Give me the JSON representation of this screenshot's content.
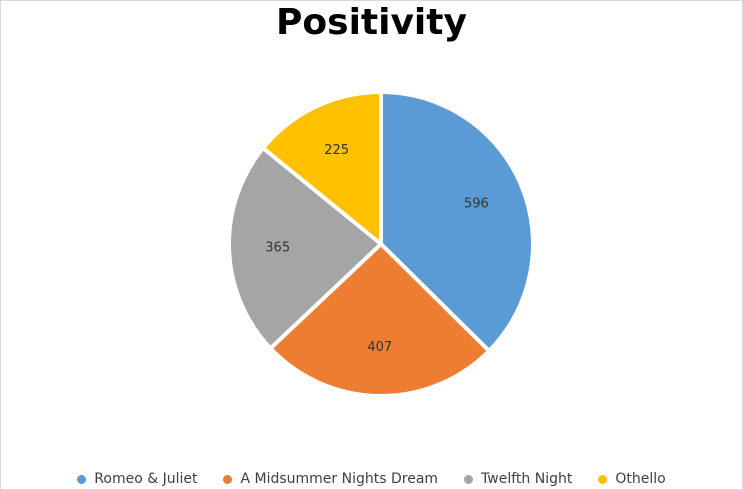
{
  "chart_data": {
    "type": "pie",
    "title": "Positivity",
    "categories": [
      "Romeo & Juliet",
      "A Midsummer Nights Dream",
      "Twelfth Night",
      "Othello"
    ],
    "values": [
      596,
      407,
      365,
      225
    ],
    "colors": [
      "#5b9bd5",
      "#ed7d31",
      "#a5a5a5",
      "#ffc000"
    ],
    "show_data_labels": true,
    "legend_position": "bottom"
  }
}
